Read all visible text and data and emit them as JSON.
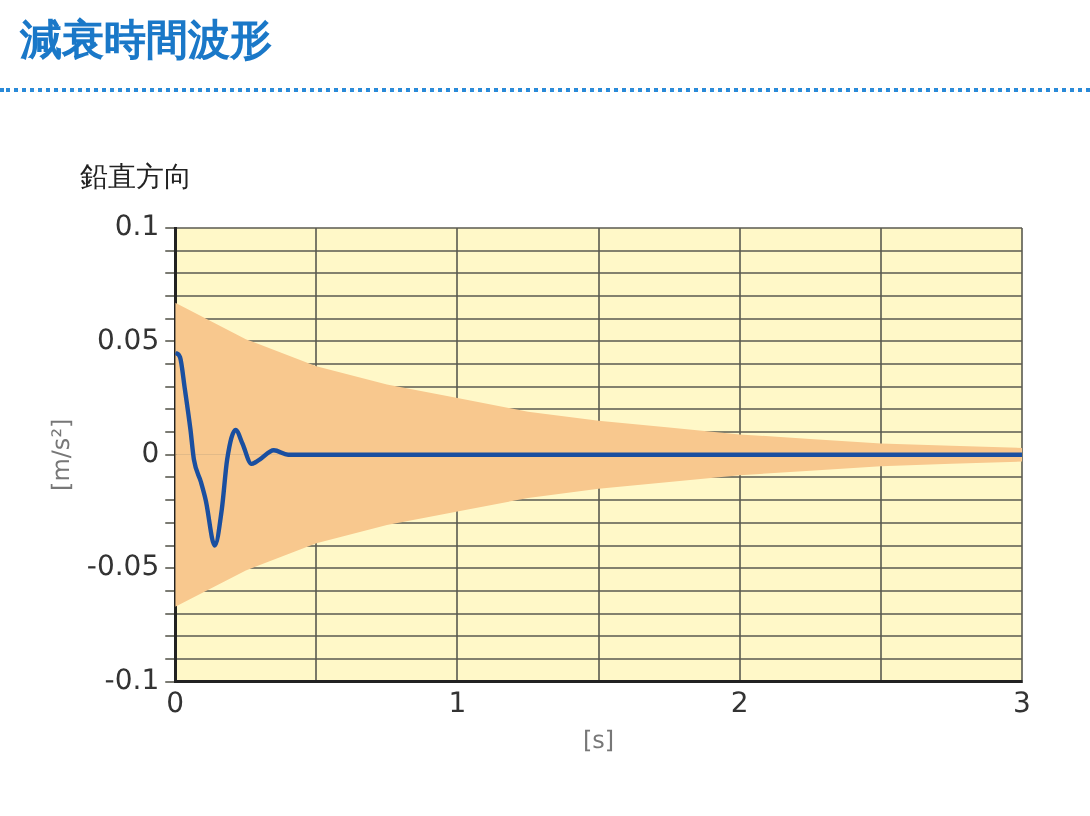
{
  "chart_data": {
    "type": "line",
    "title": "減衰時間波形",
    "subtitle": "鉛直方向",
    "xlabel": "[s]",
    "ylabel": "[m/s²]",
    "xlim": [
      0,
      3
    ],
    "ylim": [
      -0.1,
      0.1
    ],
    "xticks": [
      0,
      {
        "value": 0.5,
        "label": null
      },
      1,
      {
        "value": 1.5,
        "label": null
      },
      2,
      {
        "value": 2.5,
        "label": null
      },
      3
    ],
    "yticks": [
      -0.1,
      {
        "value": -0.09,
        "label": null
      },
      {
        "value": -0.08,
        "label": null
      },
      {
        "value": -0.07,
        "label": null
      },
      {
        "value": -0.06,
        "label": null
      },
      -0.05,
      {
        "value": -0.04,
        "label": null
      },
      {
        "value": -0.03,
        "label": null
      },
      {
        "value": -0.02,
        "label": null
      },
      {
        "value": -0.01,
        "label": null
      },
      0,
      {
        "value": 0.01,
        "label": null
      },
      {
        "value": 0.02,
        "label": null
      },
      {
        "value": 0.03,
        "label": null
      },
      {
        "value": 0.04,
        "label": null
      },
      0.05,
      {
        "value": 0.06,
        "label": null
      },
      {
        "value": 0.07,
        "label": null
      },
      {
        "value": 0.08,
        "label": null
      },
      {
        "value": 0.09,
        "label": null
      },
      0.1
    ],
    "grid": true,
    "marker": "none",
    "line_style": "solid",
    "series": [
      {
        "type": "area",
        "color": "#f8c88e",
        "x": [
          0,
          0.25,
          0.5,
          0.75,
          1,
          1.25,
          1.5,
          1.75,
          2,
          2.25,
          2.5,
          2.75,
          3
        ],
        "values": [
          0.067,
          0.051,
          0.039,
          0.031,
          0.025,
          0.019,
          0.015,
          0.012,
          0.009,
          0.007,
          0.005,
          0.004,
          0.003
        ]
      },
      {
        "type": "area",
        "color": "#f8c88e",
        "x": [
          0,
          0.25,
          0.5,
          0.75,
          1,
          1.25,
          1.5,
          1.75,
          2,
          2.25,
          2.5,
          2.75,
          3
        ],
        "values": [
          -0.067,
          -0.051,
          -0.039,
          -0.031,
          -0.025,
          -0.019,
          -0.015,
          -0.012,
          -0.009,
          -0.007,
          -0.005,
          -0.004,
          -0.003
        ]
      },
      {
        "type": "line",
        "color": "#1a4fa0",
        "x": [
          0,
          0.017,
          0.034,
          0.054,
          0.066,
          0.091,
          0.108,
          0.14,
          0.165,
          0.184,
          0.214,
          0.238,
          0.27,
          0.3,
          0.349,
          0.4,
          1,
          1.5,
          2,
          2.5,
          2.75,
          3
        ],
        "values": [
          0.045,
          0.043,
          0.029,
          0.011,
          -0.002,
          -0.012,
          -0.02,
          -0.04,
          -0.024,
          -0.002,
          0.011,
          0.005,
          -0.004,
          -0.002,
          0.002,
          0,
          0,
          0,
          0,
          0,
          0,
          0
        ]
      }
    ]
  }
}
